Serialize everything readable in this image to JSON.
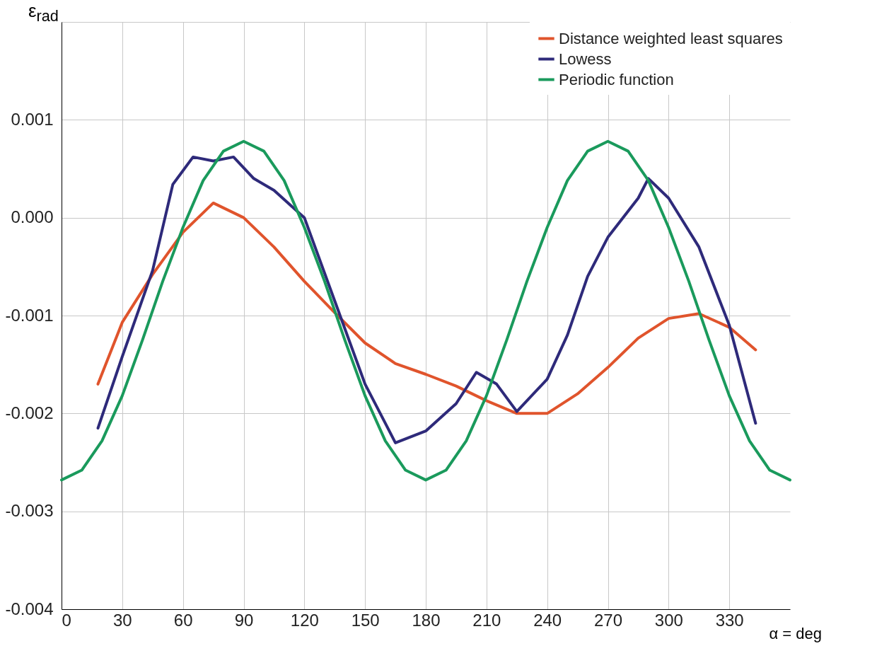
{
  "chart_data": {
    "type": "line",
    "xlabel": "α = deg",
    "ylabel": "ε$_{rad}$",
    "xlim": [
      0,
      360
    ],
    "xticks": [
      0,
      30,
      60,
      90,
      120,
      150,
      180,
      210,
      240,
      270,
      300,
      330
    ],
    "ylim": [
      -0.004,
      0.002
    ],
    "yticks": [
      {
        "value": -0.004,
        "label": "-0.004"
      },
      {
        "value": -0.003,
        "label": "-0.003"
      },
      {
        "value": -0.002,
        "label": "-0.002"
      },
      {
        "value": -0.001,
        "label": "-0.001"
      },
      {
        "value": 0,
        "label": "0.000"
      },
      {
        "value": 0.001,
        "label": "0.001"
      },
      {
        "value": 0.002,
        "label": null
      }
    ],
    "grid": true,
    "legend": "top right",
    "marker": "none",
    "line_style": "solid",
    "series": [
      {
        "name": "Distance weighted least squares",
        "color": "#e0542c",
        "x": [
          18,
          30,
          45,
          60,
          75,
          90,
          105,
          120,
          135,
          150,
          165,
          180,
          195,
          210,
          225,
          240,
          255,
          270,
          285,
          300,
          315,
          330,
          343
        ],
        "values": [
          -0.0017,
          -0.00107,
          -0.00058,
          -0.00015,
          0.00015,
          0.0,
          -0.0003,
          -0.00065,
          -0.00097,
          -0.00128,
          -0.00149,
          -0.0016,
          -0.00172,
          -0.00187,
          -0.002,
          -0.002,
          -0.0018,
          -0.00153,
          -0.00123,
          -0.00103,
          -0.00098,
          -0.00112,
          -0.00135
        ]
      },
      {
        "name": "Lowess",
        "color": "#2e2a7a",
        "x": [
          18,
          30,
          45,
          55,
          65,
          75,
          85,
          95,
          105,
          120,
          135,
          150,
          160,
          165,
          180,
          195,
          205,
          215,
          225,
          240,
          250,
          260,
          270,
          285,
          290,
          300,
          315,
          330,
          343
        ],
        "values": [
          -0.00215,
          -0.00142,
          -0.00054,
          0.00034,
          0.00062,
          0.00058,
          0.00062,
          0.0004,
          0.00028,
          0.0,
          -0.00085,
          -0.0017,
          -0.0021,
          -0.0023,
          -0.00218,
          -0.0019,
          -0.00158,
          -0.0017,
          -0.00198,
          -0.00165,
          -0.0012,
          -0.0006,
          -0.0002,
          0.0002,
          0.0004,
          0.0002,
          -0.0003,
          -0.0011,
          -0.0021
        ]
      },
      {
        "name": "Periodic function",
        "color": "#1a9a5c",
        "x": [
          0,
          10,
          20,
          30,
          40,
          50,
          60,
          70,
          80,
          90,
          100,
          110,
          120,
          130,
          140,
          150,
          160,
          170,
          180,
          190,
          200,
          210,
          220,
          230,
          240,
          250,
          260,
          270,
          280,
          290,
          300,
          310,
          320,
          330,
          340,
          350,
          360
        ],
        "values": [
          -0.00268,
          -0.00258,
          -0.00228,
          -0.00182,
          -0.00125,
          -0.00065,
          -0.0001,
          0.00038,
          0.00068,
          0.00078,
          0.00068,
          0.00038,
          -0.0001,
          -0.00065,
          -0.00125,
          -0.00182,
          -0.00228,
          -0.00258,
          -0.00268,
          -0.00258,
          -0.00228,
          -0.00182,
          -0.00125,
          -0.00065,
          -0.0001,
          0.00038,
          0.00068,
          0.00078,
          0.00068,
          0.00038,
          -0.0001,
          -0.00065,
          -0.00125,
          -0.00182,
          -0.00228,
          -0.00258,
          -0.00268
        ]
      }
    ]
  }
}
